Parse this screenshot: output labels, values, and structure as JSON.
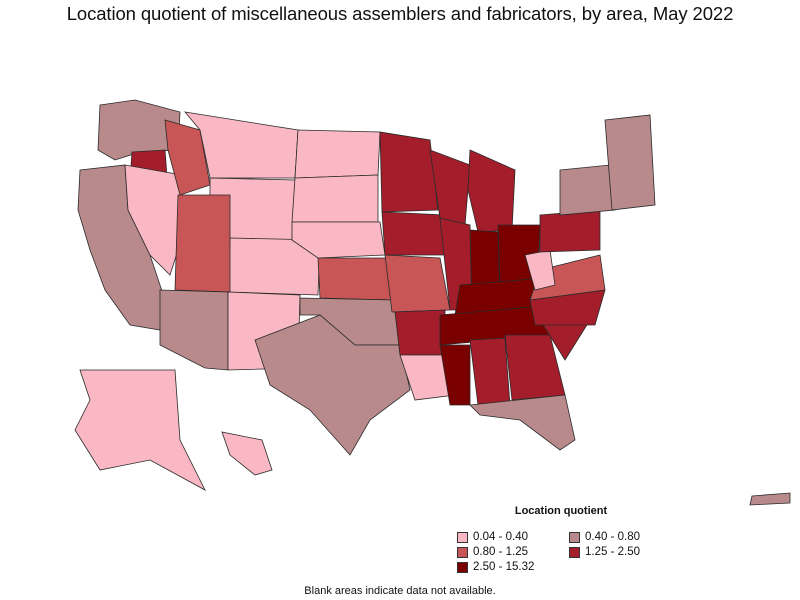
{
  "title": "Location quotient of miscellaneous assemblers and fabricators, by area, May 2022",
  "legend": {
    "title": "Location quotient",
    "items": [
      {
        "label": "0.04 - 0.40",
        "color": "#f9b8c4"
      },
      {
        "label": "0.40 - 0.80",
        "color": "#b88a8c"
      },
      {
        "label": "0.80 - 1.25",
        "color": "#c95656"
      },
      {
        "label": "1.25 - 2.50",
        "color": "#a31e2a"
      },
      {
        "label": "2.50 - 15.32",
        "color": "#7a0000"
      }
    ]
  },
  "footnote": "Blank areas indicate data not available.",
  "map_data": {
    "type": "choropleth",
    "region_level": "area",
    "regions": [
      {
        "name": "Pacific Northwest",
        "class": 1
      },
      {
        "name": "Oregon interior",
        "class": 3
      },
      {
        "name": "California coast",
        "class": 1
      },
      {
        "name": "Nevada",
        "class": 0
      },
      {
        "name": "Idaho",
        "class": 2
      },
      {
        "name": "Montana",
        "class": 0
      },
      {
        "name": "Wyoming",
        "class": 0
      },
      {
        "name": "Colorado",
        "class": 0
      },
      {
        "name": "Utah",
        "class": 2
      },
      {
        "name": "Arizona",
        "class": 1
      },
      {
        "name": "New Mexico",
        "class": 0
      },
      {
        "name": "North Dakota",
        "class": 0
      },
      {
        "name": "South Dakota",
        "class": 0
      },
      {
        "name": "Nebraska",
        "class": 0
      },
      {
        "name": "Kansas",
        "class": 2
      },
      {
        "name": "Oklahoma",
        "class": 1
      },
      {
        "name": "Texas",
        "class": 1
      },
      {
        "name": "Minnesota",
        "class": 3
      },
      {
        "name": "Iowa",
        "class": 3
      },
      {
        "name": "Wisconsin",
        "class": 3
      },
      {
        "name": "Missouri",
        "class": 2
      },
      {
        "name": "Arkansas",
        "class": 3
      },
      {
        "name": "Louisiana",
        "class": 0
      },
      {
        "name": "Illinois",
        "class": 3
      },
      {
        "name": "Michigan",
        "class": 3
      },
      {
        "name": "Indiana",
        "class": 4
      },
      {
        "name": "Ohio",
        "class": 4
      },
      {
        "name": "Kentucky",
        "class": 4
      },
      {
        "name": "Tennessee",
        "class": 4
      },
      {
        "name": "Mississippi",
        "class": 4
      },
      {
        "name": "Alabama",
        "class": 3
      },
      {
        "name": "Georgia",
        "class": 3
      },
      {
        "name": "Florida",
        "class": 1
      },
      {
        "name": "South Carolina",
        "class": 3
      },
      {
        "name": "North Carolina",
        "class": 3
      },
      {
        "name": "Virginia",
        "class": 2
      },
      {
        "name": "West Virginia",
        "class": 0
      },
      {
        "name": "Pennsylvania",
        "class": 3
      },
      {
        "name": "New York",
        "class": 1
      },
      {
        "name": "New England",
        "class": 1
      },
      {
        "name": "Alaska",
        "class": 0
      },
      {
        "name": "Hawaii",
        "class": 0
      },
      {
        "name": "Puerto Rico",
        "class": 1
      }
    ]
  }
}
